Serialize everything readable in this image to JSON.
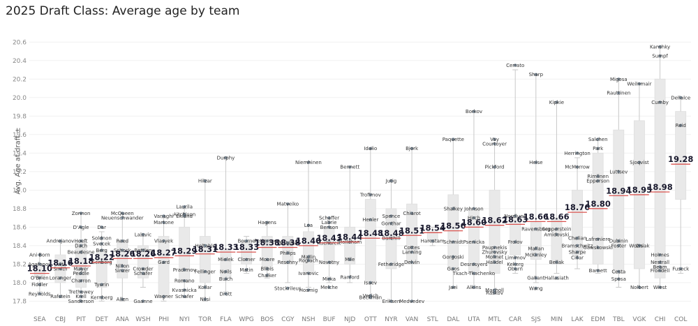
{
  "chart_data": {
    "type": "box",
    "title": "2025 Draft Class: Average age by team",
    "ylabel": "Avg. Age at draft ±",
    "xlabel": "",
    "ylim": [
      17.75,
      20.7
    ],
    "yticks": [
      "17.8",
      "18.0",
      "18.2",
      "18.4",
      "18.6",
      "18.8",
      "19.0",
      "19.2",
      "19.4",
      "19.6",
      "19.8",
      "20.0",
      "20.2",
      "20.4",
      "20.6"
    ],
    "categories": [
      "SEA",
      "CBJ",
      "PIT",
      "DET",
      "ANA",
      "WSH",
      "PHI",
      "NYI",
      "TOR",
      "FLA",
      "WPG",
      "BOS",
      "CGY",
      "NSH",
      "BUF",
      "NJD",
      "OTT",
      "NYR",
      "VAN",
      "STL",
      "DAL",
      "UTA",
      "MTL",
      "CAR",
      "SJS",
      "MIN",
      "LAK",
      "EDM",
      "TBL",
      "VGK",
      "CHI",
      "COL"
    ],
    "averages": [
      "18.10",
      "18.16",
      "18.18",
      "18.22",
      "18.26",
      "18.26",
      "18.27",
      "18.29",
      "18.31",
      "18.33",
      "18.33",
      "18.38",
      "18.38",
      "18.40",
      "18.43",
      "18.44",
      "18.48",
      "18.48",
      "18.51",
      "18.54",
      "18.56",
      "18.60",
      "18.62",
      "18.63",
      "18.66",
      "18.66",
      "18.76",
      "18.80",
      "18.94",
      "18.95",
      "18.98",
      "19.28"
    ],
    "boxes": [
      {
        "team": "SEA",
        "q1": 18.05,
        "q3": 18.2,
        "min": 17.9,
        "max": 18.3
      },
      {
        "team": "CBJ",
        "q1": 18.0,
        "q3": 18.3,
        "min": 17.85,
        "max": 18.45
      },
      {
        "team": "PIT",
        "q1": 17.95,
        "q3": 18.45,
        "min": 17.8,
        "max": 18.75
      },
      {
        "team": "DET",
        "q1": 17.95,
        "q3": 18.35,
        "min": 17.8,
        "max": 18.55
      },
      {
        "team": "ANA",
        "q1": 18.05,
        "q3": 18.45,
        "min": 17.8,
        "max": 18.75
      },
      {
        "team": "WSH",
        "q1": 18.05,
        "q3": 18.4,
        "min": 17.95,
        "max": 18.5
      },
      {
        "team": "PHI",
        "q1": 17.85,
        "q3": 18.5,
        "min": 17.8,
        "max": 18.7
      },
      {
        "team": "NYI",
        "q1": 18.0,
        "q3": 18.6,
        "min": 17.85,
        "max": 18.8
      },
      {
        "team": "TOR",
        "q1": 18.0,
        "q3": 18.5,
        "min": 17.8,
        "max": 19.1
      },
      {
        "team": "FLA",
        "q1": 18.05,
        "q3": 18.35,
        "min": 17.9,
        "max": 19.35
      },
      {
        "team": "WPG",
        "q1": 18.2,
        "q3": 18.45,
        "min": 18.1,
        "max": 18.5
      },
      {
        "team": "BOS",
        "q1": 18.15,
        "q3": 18.5,
        "min": 18.05,
        "max": 18.65
      },
      {
        "team": "CGY",
        "q1": 18.2,
        "q3": 18.5,
        "min": 18.0,
        "max": 18.85
      },
      {
        "team": "NSH",
        "q1": 18.1,
        "q3": 18.55,
        "min": 17.95,
        "max": 19.3
      },
      {
        "team": "BUF",
        "q1": 18.2,
        "q3": 18.6,
        "min": 18.0,
        "max": 18.7
      },
      {
        "team": "NJD",
        "q1": 18.2,
        "q3": 18.6,
        "min": 18.0,
        "max": 19.25
      },
      {
        "team": "OTT",
        "q1": 18.0,
        "q3": 18.9,
        "min": 17.85,
        "max": 19.45
      },
      {
        "team": "NYR",
        "q1": 18.15,
        "q3": 18.8,
        "min": 17.8,
        "max": 19.1
      },
      {
        "team": "VAN",
        "q1": 18.2,
        "q3": 18.85,
        "min": 17.8,
        "max": 19.45
      },
      {
        "team": "STL",
        "q1": 18.45,
        "q3": 18.55,
        "min": 18.4,
        "max": 18.6
      },
      {
        "team": "DAL",
        "q1": 18.15,
        "q3": 18.95,
        "min": 17.95,
        "max": 19.55
      },
      {
        "team": "UTA",
        "q1": 18.1,
        "q3": 18.8,
        "min": 17.95,
        "max": 19.85
      },
      {
        "team": "MTL",
        "q1": 18.1,
        "q3": 19.0,
        "min": 17.9,
        "max": 19.5
      },
      {
        "team": "CAR",
        "q1": 18.3,
        "q3": 18.7,
        "min": 18.1,
        "max": 20.3
      },
      {
        "team": "SJS",
        "q1": 18.25,
        "q3": 18.65,
        "min": 18.0,
        "max": 20.25
      },
      {
        "team": "MIN",
        "q1": 18.2,
        "q3": 18.7,
        "min": 18.1,
        "max": 19.95
      },
      {
        "team": "LAK",
        "q1": 18.3,
        "q3": 19.0,
        "min": 18.15,
        "max": 19.35
      },
      {
        "team": "EDM",
        "q1": 18.2,
        "q3": 19.4,
        "min": 18.1,
        "max": 19.55
      },
      {
        "team": "TBL",
        "q1": 18.1,
        "q3": 19.65,
        "min": 17.95,
        "max": 20.2
      },
      {
        "team": "VGK",
        "q1": 18.15,
        "q3": 19.75,
        "min": 17.95,
        "max": 20.15
      },
      {
        "team": "CHI",
        "q1": 18.05,
        "q3": 20.2,
        "min": 17.95,
        "max": 20.55
      },
      {
        "team": "COL",
        "q1": 18.9,
        "q3": 19.85,
        "min": 18.1,
        "max": 20.0
      }
    ],
    "players": [
      {
        "team": "SEA",
        "names": [
          [
            "Ani Born",
            18.3
          ],
          [
            "Agafonov",
            18.2
          ],
          [
            "O'Brien",
            18.05
          ],
          [
            "Fiddler",
            17.98
          ],
          [
            "Reynolds",
            17.88
          ]
        ]
      },
      {
        "team": "CBJ",
        "names": [
          [
            "Andrejanov",
            18.45
          ],
          [
            "Vit",
            18.2
          ],
          [
            "Smith",
            18.15
          ],
          [
            "Loranger",
            18.05
          ],
          [
            "Rafstein",
            17.85
          ]
        ]
      },
      {
        "team": "PIT",
        "names": [
          [
            "Zonnon",
            18.75
          ],
          [
            "D'Agle",
            18.6
          ],
          [
            "Hoeft",
            18.45
          ],
          [
            "Dach",
            18.4
          ],
          [
            "Beaudesne",
            18.33
          ],
          [
            "Mayer",
            18.15
          ],
          [
            "Peddle",
            18.1
          ],
          [
            "Charron",
            18.02
          ],
          [
            "Trethowey",
            17.9
          ],
          [
            "Krell",
            17.85
          ],
          [
            "Sanderson",
            17.8
          ]
        ]
      },
      {
        "team": "DET",
        "names": [
          [
            "Dar",
            18.6
          ],
          [
            "Soldnon",
            18.48
          ],
          [
            "Svecek",
            18.42
          ],
          [
            "Berg",
            18.35
          ],
          [
            "Genborg",
            18.22
          ],
          [
            "Tyurin",
            17.98
          ],
          [
            "Kernberg",
            17.84
          ]
        ]
      },
      {
        "team": "ANA",
        "names": [
          [
            "McQueen",
            18.75
          ],
          [
            "Neuenschwander",
            18.7
          ],
          [
            "Reed",
            18.45
          ],
          [
            "Schock",
            18.35
          ],
          [
            "Nillon",
            18.18
          ],
          [
            "Sinzer",
            18.13
          ],
          [
            "Allen",
            17.82
          ]
        ]
      },
      {
        "team": "WSH",
        "names": [
          [
            "Lalovic",
            18.52
          ],
          [
            "Bottlen",
            18.35
          ],
          [
            "Crowder",
            18.15
          ],
          [
            "Schafer",
            18.1
          ],
          [
            "Gaanne",
            17.8
          ]
        ]
      },
      {
        "team": "PHI",
        "names": [
          [
            "Vanaghi",
            18.72
          ],
          [
            "Martone",
            18.65
          ],
          [
            "Vlasyek",
            18.45
          ],
          [
            "Gard",
            18.22
          ],
          [
            "Wagner",
            17.85
          ]
        ]
      },
      {
        "team": "NYI",
        "names": [
          [
            "Laurila",
            18.82
          ],
          [
            "Aitchison",
            18.74
          ],
          [
            "Ekland",
            18.72
          ],
          [
            "Pradimov",
            18.14
          ],
          [
            "Romano",
            18.02
          ],
          [
            "Kvasnicka",
            17.92
          ],
          [
            "Schafer",
            17.85
          ]
        ]
      },
      {
        "team": "TOR",
        "names": [
          [
            "Hilzar",
            19.1
          ],
          [
            "Holtahls",
            18.4
          ],
          [
            "Fellinger",
            18.12
          ],
          [
            "Kollar",
            17.95
          ],
          [
            "Nilsi",
            17.82
          ]
        ]
      },
      {
        "team": "FLA",
        "names": [
          [
            "Durphy",
            19.35
          ],
          [
            "Mielek",
            18.25
          ],
          [
            "Noils",
            18.12
          ],
          [
            "Buich",
            18.04
          ],
          [
            "Drott",
            17.88
          ]
        ]
      },
      {
        "team": "WPG",
        "names": [
          [
            "Bourne",
            18.45
          ],
          [
            "Clomer",
            18.25
          ],
          [
            "Matin",
            18.14
          ]
        ]
      },
      {
        "team": "BOS",
        "names": [
          [
            "Hagens",
            18.65
          ],
          [
            "Pettersson",
            18.45
          ],
          [
            "Moore",
            18.25
          ],
          [
            "Blibis",
            18.15
          ],
          [
            "Chalker",
            18.08
          ]
        ]
      },
      {
        "team": "CGY",
        "names": [
          [
            "Matveiko",
            18.85
          ],
          [
            "Bahlini",
            18.43
          ],
          [
            "Philips",
            18.32
          ],
          [
            "Reschny",
            18.22
          ],
          [
            "Stockrileus",
            17.94
          ]
        ]
      },
      {
        "team": "NSH",
        "names": [
          [
            "Niemhinen",
            19.3
          ],
          [
            "Loa",
            18.62
          ],
          [
            "Mallin",
            18.28
          ],
          [
            "Rogiach",
            18.24
          ],
          [
            "Ivanovic",
            18.1
          ],
          [
            "Hosmig",
            17.92
          ]
        ]
      },
      {
        "team": "BUF",
        "names": [
          [
            "Schaffer",
            18.7
          ],
          [
            "Labrie",
            18.65
          ],
          [
            "Benson",
            18.6
          ],
          [
            "Kucharcik",
            18.43
          ],
          [
            "Novotny",
            18.22
          ],
          [
            "Mirka",
            18.04
          ],
          [
            "Melche",
            17.95
          ]
        ]
      },
      {
        "team": "NJD",
        "names": [
          [
            "Bennett",
            19.25
          ],
          [
            "Molleham",
            18.44
          ],
          [
            "Mile",
            18.25
          ],
          [
            "Ranford",
            18.06
          ]
        ]
      },
      {
        "team": "OTT",
        "names": [
          [
            "Idalio",
            19.45
          ],
          [
            "Trofimov",
            18.95
          ],
          [
            "Henler",
            18.68
          ],
          [
            "Isaev",
            18.0
          ],
          [
            "Vesich",
            17.86
          ],
          [
            "Beckman",
            17.84
          ]
        ]
      },
      {
        "team": "NYR",
        "names": [
          [
            "Jutig",
            19.1
          ],
          [
            "Spence",
            18.72
          ],
          [
            "Gonthar",
            18.64
          ],
          [
            "Barchill",
            18.48
          ],
          [
            "Fetheridge",
            18.2
          ],
          [
            "Eriksen",
            17.8
          ]
        ]
      },
      {
        "team": "VAN",
        "names": [
          [
            "Bjork",
            19.45
          ],
          [
            "Chiarot",
            18.75
          ],
          [
            "Cottes",
            18.38
          ],
          [
            "Lanning",
            18.33
          ],
          [
            "Delvin",
            18.22
          ],
          [
            "Medvedev",
            17.8
          ]
        ]
      },
      {
        "team": "STL",
        "names": [
          [
            "Harestam",
            18.45
          ]
        ]
      },
      {
        "team": "DAL",
        "names": [
          [
            "Paquette",
            19.55
          ],
          [
            "Shalkey",
            18.8
          ],
          [
            "Schmidt",
            18.44
          ],
          [
            "Gorgoski",
            18.28
          ],
          [
            "Gaos",
            18.15
          ],
          [
            "Jaei",
            17.95
          ]
        ]
      },
      {
        "team": "UTA",
        "names": [
          [
            "Borkov",
            19.85
          ],
          [
            "Johnson",
            18.8
          ],
          [
            "Hirch",
            18.7
          ],
          [
            "Psenicka",
            18.44
          ],
          [
            "Desrosyers",
            18.2
          ],
          [
            "Tkach-Tkachenko",
            18.1
          ],
          [
            "Alkins",
            17.95
          ]
        ]
      },
      {
        "team": "MTL",
        "names": [
          [
            "Vay",
            19.55
          ],
          [
            "Courtoyer",
            19.5
          ],
          [
            "Pickford",
            19.25
          ],
          [
            "Paupnekis",
            18.38
          ],
          [
            "Zhurovsky",
            18.33
          ],
          [
            "Molinet",
            18.28
          ],
          [
            "Halldel",
            18.22
          ],
          [
            "Macholl",
            17.92
          ],
          [
            "Raskov",
            17.89
          ]
        ]
      },
      {
        "team": "CAR",
        "names": [
          [
            "Cerrato",
            20.35
          ],
          [
            "Nordlund",
            18.72
          ],
          [
            "Frolov",
            18.44
          ],
          [
            "Limimov",
            18.27
          ],
          [
            "Kekerg",
            18.2
          ],
          [
            "Oburn",
            18.15
          ]
        ]
      },
      {
        "team": "SJS",
        "names": [
          [
            "Sharp",
            20.25
          ],
          [
            "Heise",
            19.3
          ],
          [
            "Ravensberg",
            18.58
          ],
          [
            "Mallan",
            18.37
          ],
          [
            "McKinley",
            18.3
          ],
          [
            "Gallant",
            18.05
          ],
          [
            "Wang",
            17.94
          ]
        ]
      },
      {
        "team": "MIN",
        "names": [
          [
            "Kipkie",
            19.95
          ],
          [
            "Sepperstein",
            18.58
          ],
          [
            "Amidovski",
            18.52
          ],
          [
            "Bellak",
            18.22
          ],
          [
            "Hallasiath",
            18.05
          ]
        ]
      },
      {
        "team": "LAK",
        "names": [
          [
            "Herrington",
            19.4
          ],
          [
            "McMorrow",
            19.25
          ],
          [
            "Chelian",
            18.48
          ],
          [
            "Bramschwitz",
            18.4
          ],
          [
            "Sharpe",
            18.33
          ],
          [
            "Cillar",
            18.27
          ]
        ]
      },
      {
        "team": "EDM",
        "names": [
          [
            "Salchen",
            19.55
          ],
          [
            "Park",
            19.45
          ],
          [
            "Rimlinen",
            19.15
          ],
          [
            "Epperson",
            19.1
          ],
          [
            "Lafreniere",
            18.47
          ],
          [
            "Gawskowski",
            18.38
          ],
          [
            "Barnett",
            18.13
          ]
        ]
      },
      {
        "team": "TBL",
        "names": [
          [
            "Migosa",
            20.2
          ],
          [
            "Rauttinen",
            20.05
          ],
          [
            "Luttsev",
            19.2
          ],
          [
            "Dubinin",
            18.45
          ],
          [
            "Foster",
            18.4
          ],
          [
            "Cesta",
            18.12
          ],
          [
            "Sposa",
            18.04
          ]
        ]
      },
      {
        "team": "VGK",
        "names": [
          [
            "Weilnmair",
            20.15
          ],
          [
            "Sjoqvist",
            19.3
          ],
          [
            "Ihs",
            18.4
          ],
          [
            "Wozniak",
            18.4
          ],
          [
            "Nolbert",
            17.95
          ]
        ]
      },
      {
        "team": "CHI",
        "names": [
          [
            "Kanshky",
            20.55
          ],
          [
            "Sumpf",
            20.45
          ],
          [
            "Cumby",
            19.95
          ],
          [
            "Holmes",
            18.3
          ],
          [
            "Nestrall",
            18.22
          ],
          [
            "Beam",
            18.17
          ],
          [
            "Frondell",
            18.13
          ],
          [
            "Wiest",
            17.95
          ]
        ]
      },
      {
        "team": "COL",
        "names": [
          [
            "Dellalce",
            20.0
          ],
          [
            "Reid",
            19.7
          ],
          [
            "Fuseck",
            18.15
          ]
        ]
      }
    ]
  }
}
